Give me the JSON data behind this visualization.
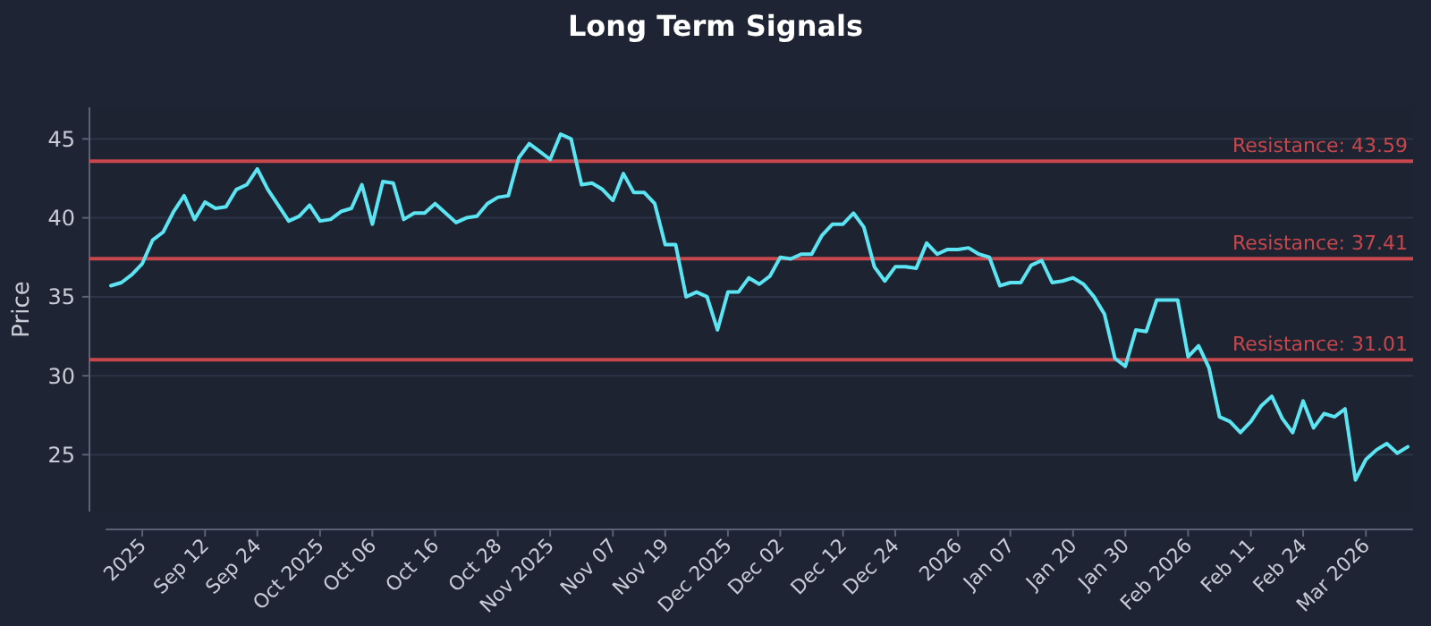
{
  "chart_data": {
    "type": "line",
    "title": "Long Term Signals",
    "ylabel": "Price",
    "categories": [
      null,
      null,
      null,
      "2025",
      null,
      null,
      null,
      null,
      null,
      "Sep 12",
      null,
      null,
      null,
      null,
      "Sep 24",
      null,
      null,
      null,
      null,
      null,
      "Oct 2025",
      null,
      null,
      null,
      null,
      "Oct 06",
      null,
      null,
      null,
      null,
      null,
      "Oct 16",
      null,
      null,
      null,
      null,
      null,
      "Oct 28",
      null,
      null,
      null,
      null,
      "Nov 2025",
      null,
      null,
      null,
      null,
      null,
      "Nov 07",
      null,
      null,
      null,
      null,
      "Nov 19",
      null,
      null,
      null,
      null,
      null,
      "Dec 2025",
      null,
      null,
      null,
      null,
      "Dec 02",
      null,
      null,
      null,
      null,
      null,
      "Dec 12",
      null,
      null,
      null,
      null,
      "Dec 24",
      null,
      null,
      null,
      null,
      null,
      "2026",
      null,
      null,
      null,
      null,
      "Jan 07",
      null,
      null,
      null,
      null,
      null,
      "Jan 20",
      null,
      null,
      null,
      null,
      "Jan 30",
      null,
      null,
      null,
      null,
      null,
      "Feb 2026",
      null,
      null,
      null,
      null,
      null,
      "Feb 11",
      null,
      null,
      null,
      null,
      "Feb 24",
      null,
      null,
      null,
      null,
      null,
      "Mar 2026",
      null,
      null,
      null,
      null
    ],
    "series": [
      {
        "color": "#5ce4f2",
        "values": [
          35.7,
          35.9,
          36.4,
          37.1,
          38.6,
          39.1,
          40.4,
          41.4,
          39.9,
          41.0,
          40.6,
          40.7,
          41.8,
          42.1,
          43.1,
          41.8,
          40.8,
          39.8,
          40.1,
          40.8,
          39.8,
          39.9,
          40.4,
          40.6,
          42.1,
          39.6,
          42.3,
          42.2,
          39.9,
          40.3,
          40.3,
          40.9,
          40.3,
          39.7,
          40.0,
          40.1,
          40.9,
          41.3,
          41.4,
          43.8,
          44.7,
          44.2,
          43.7,
          45.3,
          45.0,
          42.1,
          42.2,
          41.8,
          41.1,
          42.8,
          41.6,
          41.6,
          40.9,
          38.3,
          38.3,
          35.0,
          35.3,
          35.0,
          32.9,
          35.3,
          35.3,
          36.2,
          35.8,
          36.3,
          37.5,
          37.4,
          37.7,
          37.7,
          38.9,
          39.6,
          39.6,
          40.3,
          39.4,
          36.9,
          36.0,
          36.9,
          36.9,
          36.8,
          38.4,
          37.7,
          38.0,
          38.0,
          38.1,
          37.7,
          37.5,
          35.7,
          35.9,
          35.9,
          37.0,
          37.3,
          35.9,
          36.0,
          36.2,
          35.8,
          35.0,
          33.9,
          31.1,
          30.6,
          32.9,
          32.8,
          34.8,
          34.8,
          34.8,
          31.2,
          31.9,
          30.5,
          27.4,
          27.1,
          26.4,
          27.1,
          28.1,
          28.7,
          27.3,
          26.4,
          28.4,
          26.7,
          27.6,
          27.4,
          27.9,
          23.4,
          24.7,
          25.3,
          25.7,
          25.1,
          25.5
        ]
      }
    ],
    "ylim": [
      21.4,
      47
    ],
    "yticks": [
      25,
      30,
      35,
      40,
      45
    ],
    "grid": "y",
    "marker": "none",
    "line_style": "solid",
    "ref_lines": [
      {
        "axis": "y",
        "value": 43.59,
        "label": "Resistance: 43.59",
        "color": "#c8474d"
      },
      {
        "axis": "y",
        "value": 37.41,
        "label": "Resistance: 37.41",
        "color": "#c8474d"
      },
      {
        "axis": "y",
        "value": 31.01,
        "label": "Resistance: 31.01",
        "color": "#c8474d"
      }
    ]
  }
}
